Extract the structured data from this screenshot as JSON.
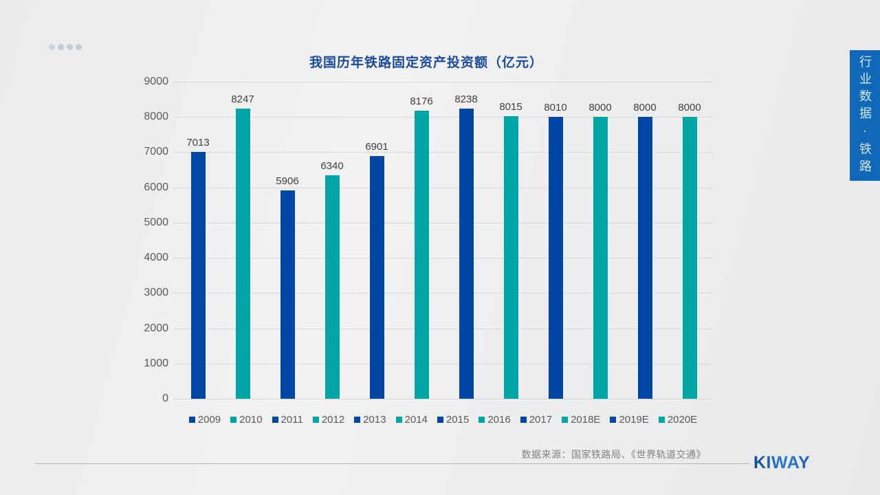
{
  "header": {
    "title": "我国历年铁路固定资产投资额（亿元）"
  },
  "side_tab": {
    "label": "行业数据·铁路",
    "background": "#0f68b8"
  },
  "footer": {
    "source_note": "数据来源：国家铁路局、《世界轨道交通》",
    "logo_text": "KIWAY"
  },
  "colors": {
    "bar_blue": "#0046a5",
    "bar_teal": "#00a6a6",
    "title_blue": "#1a4a9e",
    "tick_gray": "#595959",
    "label_gray": "#404040",
    "gridline_gray": "#d9d9d9"
  },
  "chart_data": {
    "type": "bar",
    "title": "我国历年铁路固定资产投资额（亿元）",
    "categories": [
      "2009",
      "2010",
      "2011",
      "2012",
      "2013",
      "2014",
      "2015",
      "2016",
      "2017",
      "2018E",
      "2019E",
      "2020E"
    ],
    "values": [
      7013,
      8247,
      5906,
      6340,
      6901,
      8176,
      8238,
      8015,
      8010,
      8000,
      8000,
      8000
    ],
    "xlabel": "",
    "ylabel": "",
    "ylim": [
      0,
      9000
    ],
    "ytick_step": 1000,
    "grid": true,
    "legend_position": "bottom",
    "value_labels": true,
    "series_colors": [
      "#0046a5",
      "#00a6a6"
    ]
  }
}
